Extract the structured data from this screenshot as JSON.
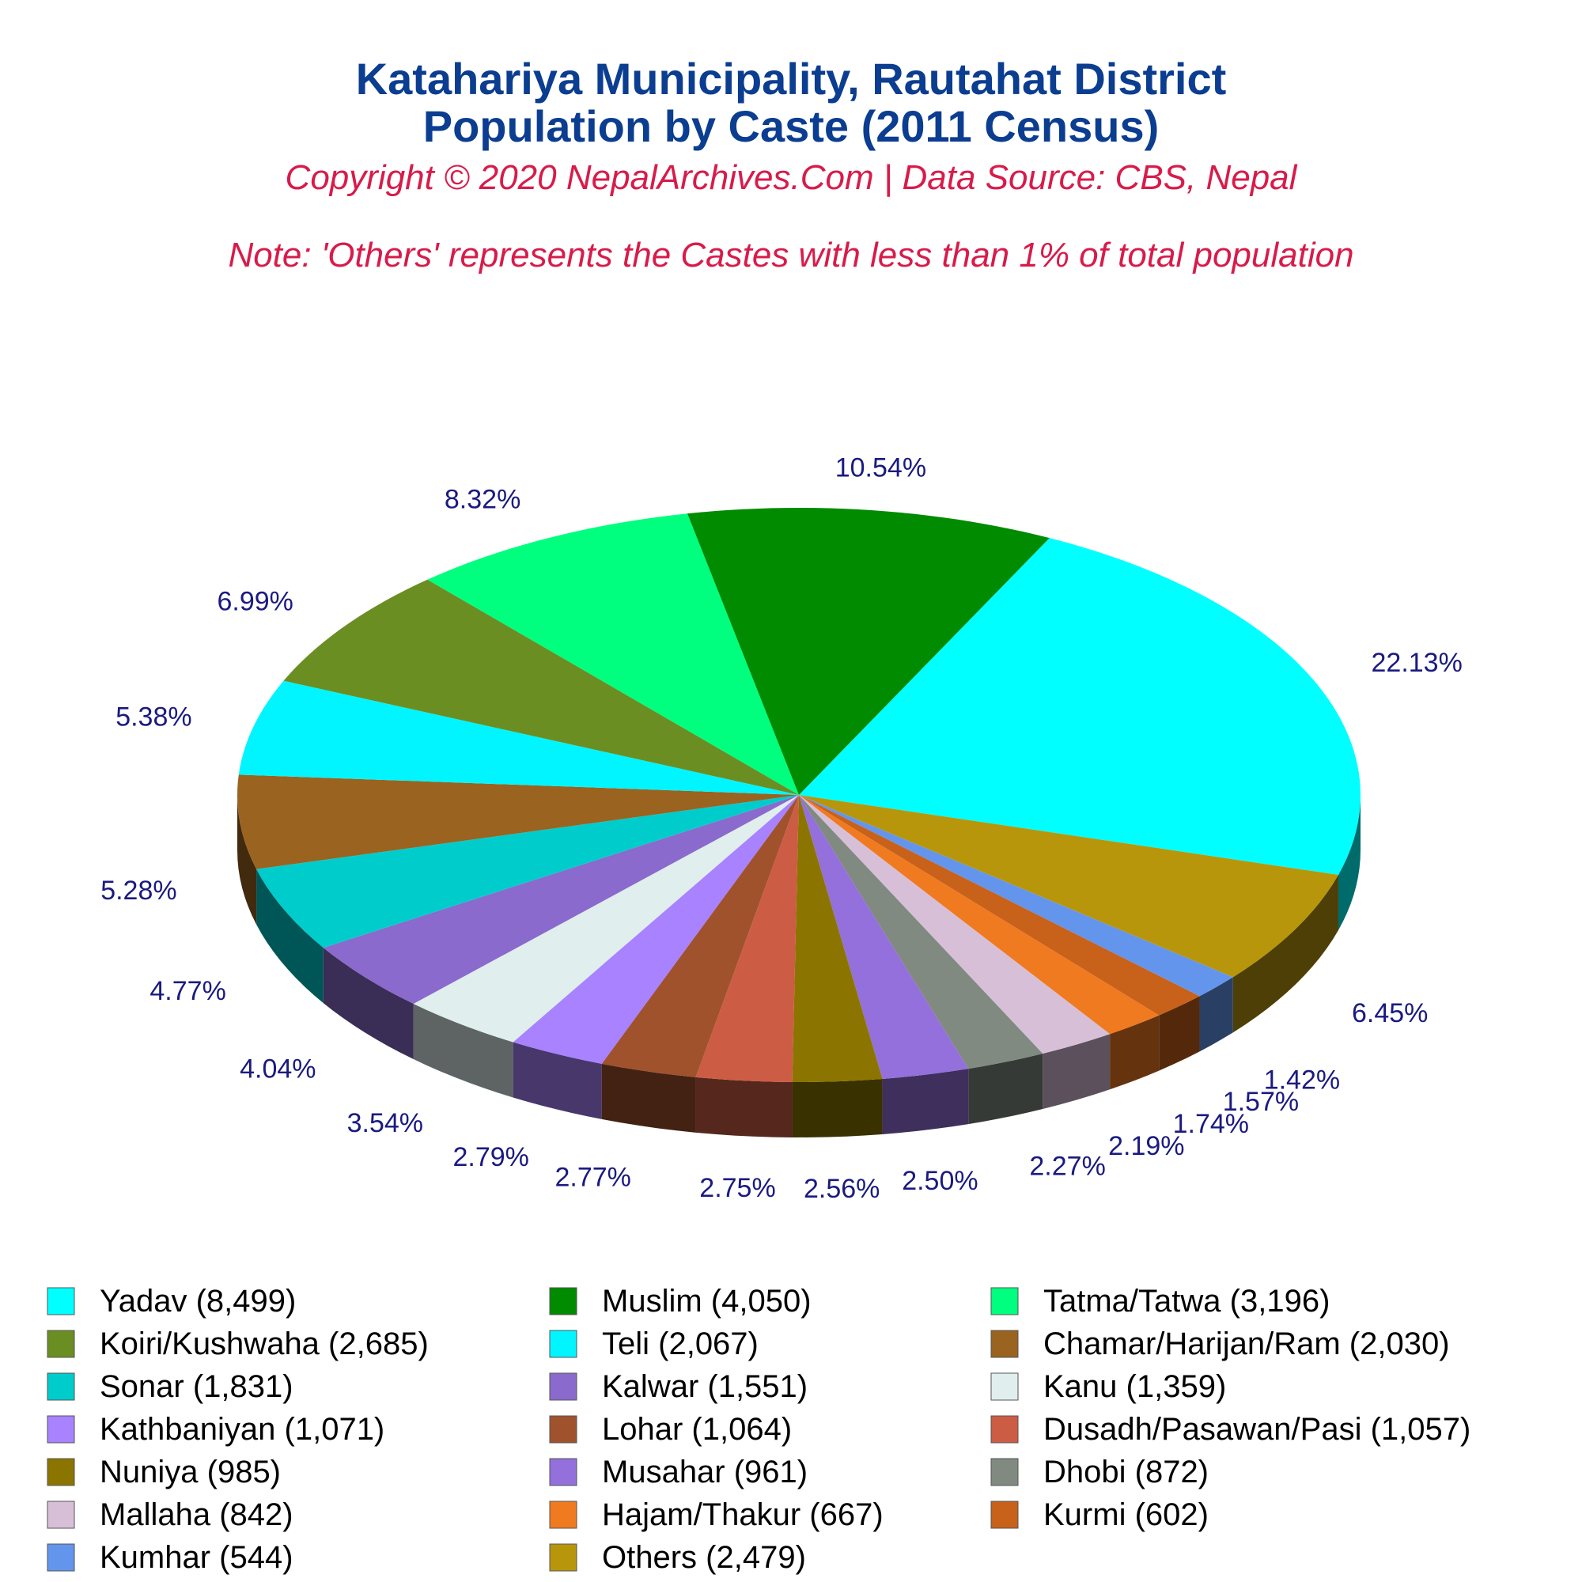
{
  "title_line1": "Katahariya Municipality, Rautahat District",
  "title_line2": "Population by Caste (2011 Census)",
  "copyright": "Copyright © 2020 NepalArchives.Com | Data Source: CBS, Nepal",
  "note": "Note: 'Others' represents the Castes with less than 1% of total population",
  "chart_data": {
    "type": "pie",
    "labels": [
      "Yadav",
      "Others",
      "Kumhar",
      "Kurmi",
      "Hajam/Thakur",
      "Mallaha",
      "Dhobi",
      "Musahar",
      "Nuniya",
      "Dusadh/Pasawan/Pasi",
      "Lohar",
      "Kathbaniyan",
      "Kanu",
      "Kalwar",
      "Sonar",
      "Chamar/Harijan/Ram",
      "Teli",
      "Koiri/Kushwaha",
      "Tatma/Tatwa",
      "Muslim"
    ],
    "values": [
      8499,
      2479,
      544,
      602,
      667,
      842,
      872,
      961,
      985,
      1057,
      1064,
      1071,
      1359,
      1551,
      1831,
      2030,
      2067,
      2685,
      3196,
      4050
    ],
    "percent_labels": [
      "22.13%",
      "6.45%",
      "1.42%",
      "1.57%",
      "1.74%",
      "2.19%",
      "2.27%",
      "2.50%",
      "2.56%",
      "2.75%",
      "2.77%",
      "2.79%",
      "3.54%",
      "4.04%",
      "4.77%",
      "5.28%",
      "5.38%",
      "6.99%",
      "8.32%",
      "10.54%"
    ],
    "colors": [
      "#00ffff",
      "#b8960c",
      "#6495ed",
      "#c8611a",
      "#f07a20",
      "#d8bfd8",
      "#808a80",
      "#9370db",
      "#8b7500",
      "#cd5c45",
      "#a0522d",
      "#a882ff",
      "#e0eeee",
      "#8a6acc",
      "#00cccc",
      "#9a6320",
      "#00f5ff",
      "#6b8e23",
      "#00ff7f",
      "#008b00"
    ],
    "legend": [
      "Yadav (8,499)",
      "Muslim (4,050)",
      "Tatma/Tatwa (3,196)",
      "Koiri/Kushwaha (2,685)",
      "Teli (2,067)",
      "Chamar/Harijan/Ram (2,030)",
      "Sonar (1,831)",
      "Kalwar (1,551)",
      "Kanu (1,359)",
      "Kathbaniyan (1,071)",
      "Lohar (1,064)",
      "Dusadh/Pasawan/Pasi (1,057)",
      "Nuniya (985)",
      "Musahar (961)",
      "Dhobi (872)",
      "Mallaha (842)",
      "Hajam/Thakur (667)",
      "Kurmi (602)",
      "Kumhar (544)",
      "Others (2,479)"
    ],
    "legend_colors": [
      "#00ffff",
      "#008b00",
      "#00ff7f",
      "#6b8e23",
      "#00f5ff",
      "#9a6320",
      "#00cccc",
      "#8a6acc",
      "#e0eeee",
      "#a882ff",
      "#a0522d",
      "#cd5c45",
      "#8b7500",
      "#9370db",
      "#808a80",
      "#d8bfd8",
      "#f07a20",
      "#c8611a",
      "#6495ed",
      "#b8960c"
    ]
  }
}
